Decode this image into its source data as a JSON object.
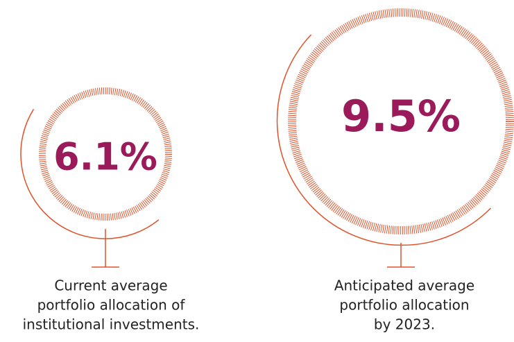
{
  "items": [
    {
      "value": "6.1%",
      "caption": [
        "Current average",
        "portfolio allocation of",
        "institutional investments."
      ]
    },
    {
      "value": "9.5%",
      "caption": [
        "Anticipated average",
        "portfolio allocation",
        "by 2023."
      ]
    }
  ]
}
